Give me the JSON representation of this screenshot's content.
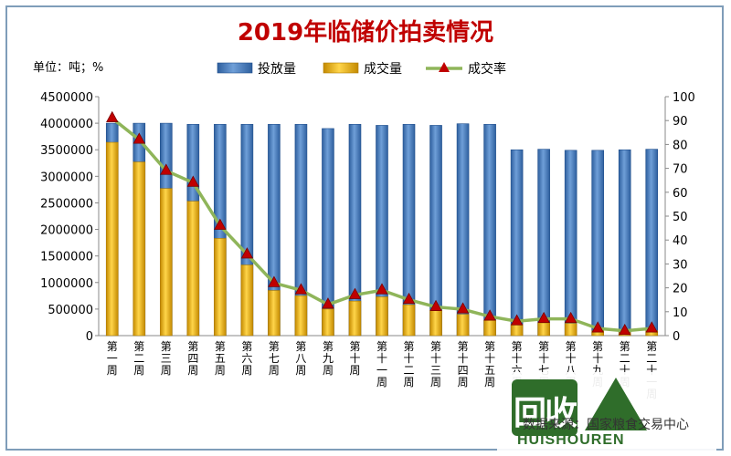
{
  "colors": {
    "background": "#ffffff",
    "frame": "#7f9db9",
    "title": "#c00000",
    "bar_offered": "#4f81bd",
    "bar_offered_dark": "#1f4e8c",
    "bar_traded": "#f0b400",
    "bar_traded_dark": "#b07c00",
    "line": "#8fb55a",
    "marker": "#c00000",
    "axis_text": "#000000",
    "grid": "#e2e2e2"
  },
  "watermark": {
    "logo_text": "回收",
    "logo_en": "HUISHOUREN",
    "source": "数据来源：国家粮食交易中心"
  },
  "chart_data": {
    "type": "bar",
    "title": "2019年临储价拍卖情况",
    "unit_label": "单位：吨；%",
    "categories": [
      "第一周",
      "第二周",
      "第三周",
      "第四周",
      "第五周",
      "第六周",
      "第七周",
      "第八周",
      "第九周",
      "第十周",
      "第十一周",
      "第十二周",
      "第十三周",
      "第十四周",
      "第十五周",
      "第十六周",
      "第十七周",
      "第十八周",
      "第十九周",
      "第二十周",
      "第二十一周"
    ],
    "series": [
      {
        "name": "投放量",
        "axis": "left",
        "kind": "bar",
        "values": [
          4000000,
          4000000,
          4000000,
          3980000,
          3980000,
          3980000,
          3980000,
          3980000,
          3900000,
          3980000,
          3960000,
          3980000,
          3960000,
          3990000,
          3980000,
          3500000,
          3510000,
          3490000,
          3490000,
          3500000,
          3510000
        ]
      },
      {
        "name": "成交量",
        "axis": "left",
        "kind": "bar",
        "values": [
          3640000,
          3270000,
          2770000,
          2530000,
          1830000,
          1330000,
          850000,
          750000,
          500000,
          650000,
          730000,
          580000,
          480000,
          400000,
          290000,
          210000,
          240000,
          230000,
          90000,
          60000,
          90000
        ]
      },
      {
        "name": "成交率",
        "axis": "right",
        "kind": "line",
        "values": [
          91,
          82,
          69,
          64,
          46,
          34,
          22,
          19,
          13,
          17,
          19,
          15,
          12,
          11,
          8,
          6,
          7,
          7,
          3,
          2,
          3
        ]
      }
    ],
    "y_left": {
      "min": 0,
      "max": 4500000,
      "ticks": [
        "0",
        "500000",
        "1000000",
        "1500000",
        "2000000",
        "2500000",
        "3000000",
        "3500000",
        "4000000",
        "4500000"
      ]
    },
    "y_right": {
      "min": 0,
      "max": 100,
      "ticks": [
        "0",
        "10",
        "20",
        "30",
        "40",
        "50",
        "60",
        "70",
        "80",
        "90",
        "100"
      ]
    },
    "legend_position": "top-right",
    "grid": false
  }
}
